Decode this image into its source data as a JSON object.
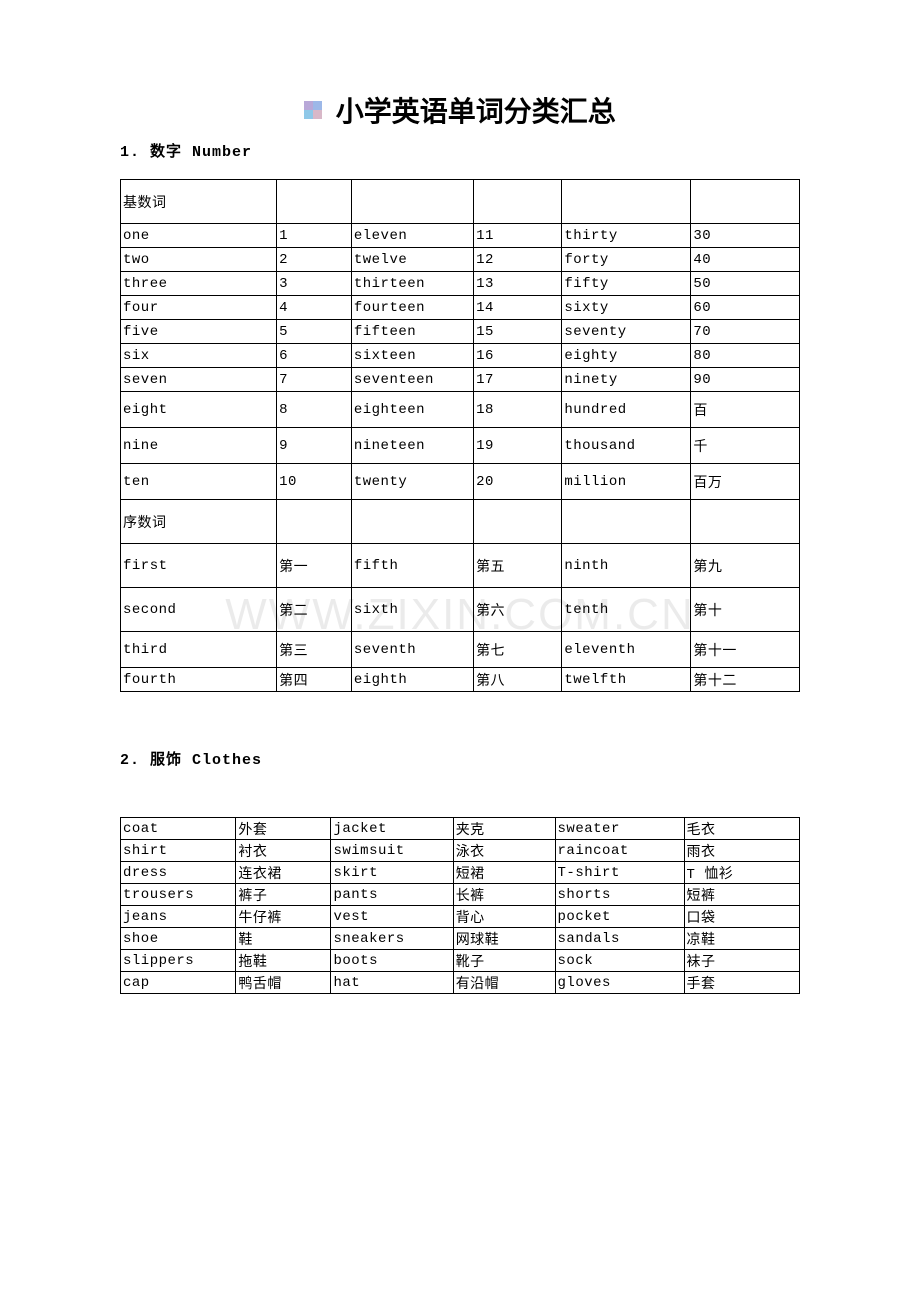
{
  "title": "小学英语单词分类汇总",
  "watermark": "WWW.ZIXIN.COM.CN",
  "sections": [
    {
      "heading": "1. 数字 Number",
      "colWidths": [
        "23%",
        "11%",
        "18%",
        "13%",
        "19%",
        "16%"
      ],
      "rows": [
        {
          "h": "tall",
          "c": [
            "基数词",
            "",
            "",
            "",
            "",
            ""
          ]
        },
        {
          "h": "",
          "c": [
            "one",
            "1",
            "eleven",
            "11",
            "thirty",
            "30"
          ]
        },
        {
          "h": "",
          "c": [
            "two",
            "2",
            "twelve",
            "12",
            "forty",
            "40"
          ]
        },
        {
          "h": "",
          "c": [
            "three",
            "3",
            "thirteen",
            "13",
            "fifty",
            "50"
          ]
        },
        {
          "h": "",
          "c": [
            "four",
            "4",
            "fourteen",
            "14",
            "sixty",
            "60"
          ]
        },
        {
          "h": "",
          "c": [
            "five",
            "5",
            "fifteen",
            "15",
            "seventy",
            "70"
          ]
        },
        {
          "h": "",
          "c": [
            "six",
            "6",
            "sixteen",
            "16",
            "eighty",
            "80"
          ]
        },
        {
          "h": "",
          "c": [
            "seven",
            "7",
            "seventeen",
            "17",
            "ninety",
            "90"
          ]
        },
        {
          "h": "med",
          "c": [
            "eight",
            "8",
            "eighteen",
            "18",
            "hundred",
            "百"
          ]
        },
        {
          "h": "med",
          "c": [
            "nine",
            "9",
            "nineteen",
            "19",
            "thousand",
            "千"
          ]
        },
        {
          "h": "med",
          "c": [
            "ten",
            "10",
            "twenty",
            "20",
            "million",
            "百万"
          ]
        },
        {
          "h": "tall",
          "c": [
            "序数词",
            "",
            "",
            "",
            "",
            ""
          ]
        },
        {
          "h": "tall",
          "c": [
            "first",
            "第一",
            "fifth",
            "第五",
            "ninth",
            "第九"
          ]
        },
        {
          "h": "tall",
          "c": [
            "second",
            "第二",
            "sixth",
            "第六",
            "tenth",
            "第十"
          ]
        },
        {
          "h": "med",
          "c": [
            "third",
            "第三",
            "seventh",
            "第七",
            "eleventh",
            "第十一"
          ]
        },
        {
          "h": "",
          "c": [
            "fourth",
            "第四",
            "eighth",
            "第八",
            "twelfth",
            "第十二"
          ]
        }
      ]
    },
    {
      "heading": "2. 服饰 Clothes",
      "colWidths": [
        "17%",
        "14%",
        "18%",
        "15%",
        "19%",
        "17%"
      ],
      "rows": [
        {
          "h": "",
          "c": [
            "coat",
            "外套",
            "jacket",
            "夹克",
            "sweater",
            "毛衣"
          ]
        },
        {
          "h": "",
          "c": [
            "shirt",
            "衬衣",
            "swimsuit",
            "泳衣",
            "raincoat",
            "雨衣"
          ]
        },
        {
          "h": "",
          "c": [
            "dress",
            "连衣裙",
            "skirt",
            "短裙",
            "T-shirt",
            "T 恤衫"
          ]
        },
        {
          "h": "",
          "c": [
            "trousers",
            "裤子",
            "pants",
            "长裤",
            "shorts",
            "短裤"
          ]
        },
        {
          "h": "",
          "c": [
            "jeans",
            "牛仔裤",
            "vest",
            "背心",
            "pocket",
            "口袋"
          ]
        },
        {
          "h": "",
          "c": [
            "shoe",
            "鞋",
            "sneakers",
            "网球鞋",
            "sandals",
            "凉鞋"
          ]
        },
        {
          "h": "",
          "c": [
            "slippers",
            "拖鞋",
            "boots",
            "靴子",
            "sock",
            "袜子"
          ]
        },
        {
          "h": "",
          "c": [
            "cap",
            "鸭舌帽",
            "hat",
            "有沿帽",
            "gloves",
            "手套"
          ]
        }
      ]
    }
  ]
}
